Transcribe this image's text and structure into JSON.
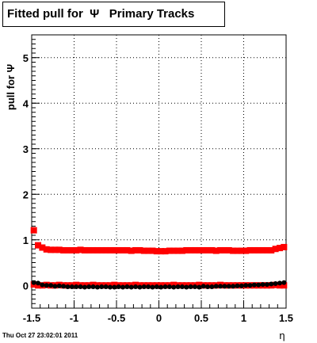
{
  "title": "Fitted pull for  Ψ   Primary Tracks",
  "timestamp": "Thu Oct 27 23:02:01 2011",
  "chart_data": {
    "type": "scatter",
    "ylabel": "pull for Ψ",
    "xlabel": "η",
    "xlim": [
      -1.5,
      1.5
    ],
    "ylim": [
      -0.5,
      5.5
    ],
    "xticks": [
      -1.5,
      -1,
      -0.5,
      0,
      0.5,
      1,
      1.5
    ],
    "xtick_labels": [
      "-1.5",
      "-1",
      "-0.5",
      "0",
      "0.5",
      "1",
      "1.5"
    ],
    "yticks": [
      0,
      1,
      2,
      3,
      4,
      5
    ],
    "ytick_labels": [
      "0",
      "1",
      "2",
      "3",
      "4",
      "5"
    ],
    "grid": true,
    "series": [
      {
        "color": "#ff0000",
        "marker": "square",
        "x": [
          -1.475,
          -1.425,
          -1.375,
          -1.325,
          -1.275,
          -1.225,
          -1.175,
          -1.125,
          -1.075,
          -1.025,
          -0.975,
          -0.925,
          -0.875,
          -0.825,
          -0.775,
          -0.725,
          -0.675,
          -0.625,
          -0.575,
          -0.525,
          -0.475,
          -0.425,
          -0.375,
          -0.325,
          -0.275,
          -0.225,
          -0.175,
          -0.125,
          -0.075,
          -0.025,
          0.025,
          0.075,
          0.125,
          0.175,
          0.225,
          0.275,
          0.325,
          0.375,
          0.425,
          0.475,
          0.525,
          0.575,
          0.625,
          0.675,
          0.725,
          0.775,
          0.825,
          0.875,
          0.925,
          0.975,
          1.025,
          1.075,
          1.125,
          1.175,
          1.225,
          1.275,
          1.325,
          1.375,
          1.425,
          1.475
        ],
        "y": [
          1.21,
          0.88,
          0.83,
          0.79,
          0.78,
          0.78,
          0.78,
          0.77,
          0.77,
          0.77,
          0.77,
          0.78,
          0.77,
          0.77,
          0.77,
          0.77,
          0.77,
          0.77,
          0.77,
          0.77,
          0.77,
          0.77,
          0.77,
          0.76,
          0.77,
          0.77,
          0.76,
          0.76,
          0.76,
          0.75,
          0.75,
          0.75,
          0.76,
          0.76,
          0.76,
          0.76,
          0.77,
          0.77,
          0.77,
          0.77,
          0.77,
          0.77,
          0.77,
          0.76,
          0.77,
          0.77,
          0.77,
          0.76,
          0.76,
          0.76,
          0.76,
          0.77,
          0.77,
          0.77,
          0.77,
          0.77,
          0.77,
          0.8,
          0.82,
          0.84
        ]
      },
      {
        "color": "#ff0000",
        "marker": "square",
        "x": [
          -1.475,
          -1.425,
          -1.375,
          -1.325,
          -1.275,
          -1.225,
          -1.175,
          -1.125,
          -1.075,
          -1.025,
          -0.975,
          -0.925,
          -0.875,
          -0.825,
          -0.775,
          -0.725,
          -0.675,
          -0.625,
          -0.575,
          -0.525,
          -0.475,
          -0.425,
          -0.375,
          -0.325,
          -0.275,
          -0.225,
          -0.175,
          -0.125,
          -0.075,
          -0.025,
          0.025,
          0.075,
          0.125,
          0.175,
          0.225,
          0.275,
          0.325,
          0.375,
          0.425,
          0.475,
          0.525,
          0.575,
          0.625,
          0.675,
          0.725,
          0.775,
          0.825,
          0.875,
          0.925,
          0.975,
          1.025,
          1.075,
          1.125,
          1.175,
          1.225,
          1.275,
          1.325,
          1.375,
          1.425,
          1.475
        ],
        "y": [
          0.02,
          0.0,
          0.0,
          0.01,
          0.0,
          0.0,
          0.01,
          0.0,
          0.0,
          0.0,
          0.01,
          0.0,
          0.0,
          0.0,
          0.01,
          0.0,
          0.0,
          0.0,
          0.0,
          0.01,
          0.0,
          0.0,
          0.0,
          0.0,
          0.01,
          0.0,
          0.0,
          0.0,
          0.0,
          0.0,
          0.0,
          0.0,
          0.0,
          0.01,
          0.0,
          0.0,
          0.0,
          0.0,
          0.0,
          0.01,
          0.0,
          0.0,
          0.0,
          0.0,
          0.01,
          0.0,
          0.0,
          0.0,
          0.0,
          0.0,
          0.0,
          0.0,
          0.0,
          0.0,
          0.0,
          0.0,
          0.0,
          0.01,
          0.0,
          0.0
        ]
      },
      {
        "color": "#000000",
        "marker": "circle",
        "x": [
          -1.475,
          -1.425,
          -1.375,
          -1.325,
          -1.275,
          -1.225,
          -1.175,
          -1.125,
          -1.075,
          -1.025,
          -0.975,
          -0.925,
          -0.875,
          -0.825,
          -0.775,
          -0.725,
          -0.675,
          -0.625,
          -0.575,
          -0.525,
          -0.475,
          -0.425,
          -0.375,
          -0.325,
          -0.275,
          -0.225,
          -0.175,
          -0.125,
          -0.075,
          -0.025,
          0.025,
          0.075,
          0.125,
          0.175,
          0.225,
          0.275,
          0.325,
          0.375,
          0.425,
          0.475,
          0.525,
          0.575,
          0.625,
          0.675,
          0.725,
          0.775,
          0.825,
          0.875,
          0.925,
          0.975,
          1.025,
          1.075,
          1.125,
          1.175,
          1.225,
          1.275,
          1.325,
          1.375,
          1.425,
          1.475
        ],
        "y": [
          0.06,
          0.05,
          0.01,
          0.0,
          0.0,
          -0.02,
          -0.01,
          -0.02,
          -0.03,
          -0.03,
          -0.03,
          -0.03,
          -0.04,
          -0.03,
          -0.03,
          -0.04,
          -0.03,
          -0.03,
          -0.04,
          -0.04,
          -0.03,
          -0.04,
          -0.03,
          -0.04,
          -0.03,
          -0.04,
          -0.03,
          -0.03,
          -0.04,
          -0.03,
          -0.04,
          -0.03,
          -0.03,
          -0.04,
          -0.03,
          -0.03,
          -0.04,
          -0.03,
          -0.03,
          -0.04,
          -0.02,
          -0.03,
          -0.03,
          -0.02,
          -0.02,
          -0.02,
          -0.02,
          -0.02,
          -0.01,
          -0.01,
          0.0,
          0.0,
          0.01,
          0.01,
          0.02,
          0.02,
          0.03,
          0.04,
          0.05,
          0.06
        ]
      }
    ]
  }
}
